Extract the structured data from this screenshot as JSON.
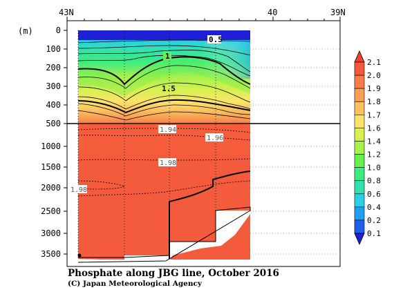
{
  "chart_data": {
    "type": "heatmap",
    "title": "Phosphate along JBG line, October 2016",
    "credit": "(C) Japan Meteorological Agency",
    "unit_label": "(m)",
    "x_axis": {
      "ticks": [
        "43N",
        "40",
        "39N"
      ],
      "values": [
        43,
        40,
        39
      ]
    },
    "y_axis_upper": {
      "ticks": [
        "0",
        "100",
        "200",
        "300",
        "400",
        "500"
      ],
      "values": [
        0,
        100,
        200,
        300,
        400,
        500
      ]
    },
    "y_axis_lower": {
      "ticks": [
        "1000",
        "1500",
        "2000",
        "2500",
        "3000",
        "3500"
      ],
      "values": [
        1000,
        1500,
        2000,
        2500,
        3000,
        3500
      ]
    },
    "contour_labels": [
      "0.5",
      "1",
      "1.5",
      "1.94",
      "1.96",
      "1.98",
      "1.98"
    ],
    "colorbar": {
      "levels": [
        "0.1",
        "0.2",
        "0.4",
        "0.6",
        "0.8",
        "1.0",
        "1.2",
        "1.4",
        "1.6",
        "1.7",
        "1.8",
        "1.9",
        "2.0",
        "2.1"
      ],
      "colors": [
        "#1f1fd6",
        "#1f5ff0",
        "#1f9ff0",
        "#2bd0e8",
        "#33e0b0",
        "#3cec80",
        "#6aef50",
        "#a8f04a",
        "#d6f04f",
        "#fbe46a",
        "#fbc060",
        "#fa9e52",
        "#f87c48",
        "#f45a3c",
        "#f04030"
      ]
    },
    "stations_lat": [
      42.55,
      41.7,
      40.9,
      40.1,
      39.3
    ],
    "data_extent": "43N to ~39.3N, 0–3700 m"
  }
}
